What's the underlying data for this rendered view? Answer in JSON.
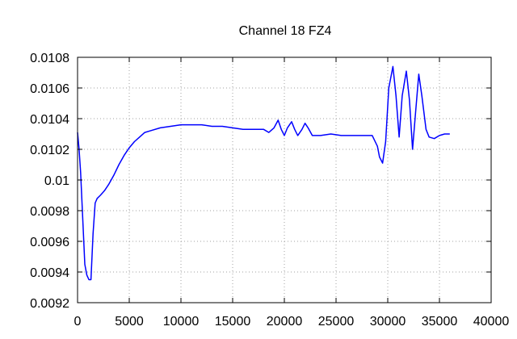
{
  "chart_data": {
    "type": "line",
    "title": "Channel 18 FZ4",
    "xlabel": "",
    "ylabel": "",
    "xlim": [
      0,
      40000
    ],
    "ylim": [
      0.0092,
      0.0108
    ],
    "x_ticks": [
      0,
      5000,
      10000,
      15000,
      20000,
      25000,
      30000,
      35000,
      40000
    ],
    "x_tick_labels": [
      "0",
      "5000",
      "10000",
      "15000",
      "20000",
      "25000",
      "30000",
      "35000",
      "40000"
    ],
    "y_ticks": [
      0.0092,
      0.0094,
      0.0096,
      0.0098,
      0.01,
      0.0102,
      0.0104,
      0.0106,
      0.0108
    ],
    "y_tick_labels": [
      "0.0092",
      "0.0094",
      "0.0096",
      "0.0098",
      "0.01",
      "0.0102",
      "0.0104",
      "0.0106",
      "0.0108"
    ],
    "grid": true,
    "series": [
      {
        "color": "#0000ff",
        "x": [
          0,
          150,
          300,
          500,
          700,
          900,
          1100,
          1300,
          1500,
          1700,
          1900,
          2200,
          2600,
          3000,
          3500,
          4000,
          4500,
          5000,
          5500,
          6000,
          6500,
          7000,
          8000,
          9000,
          10000,
          11000,
          12000,
          13000,
          14000,
          15000,
          16000,
          17000,
          18000,
          18500,
          19000,
          19400,
          19700,
          20000,
          20300,
          20700,
          21000,
          21300,
          21700,
          22000,
          22300,
          22700,
          23500,
          24500,
          25500,
          26500,
          27500,
          28500,
          29000,
          29200,
          29500,
          29800,
          30100,
          30500,
          30800,
          31100,
          31400,
          31800,
          32100,
          32400,
          32700,
          33000,
          33300,
          33700,
          34000,
          34500,
          35000,
          35500,
          36000
        ],
        "y": [
          0.01031,
          0.0102,
          0.01005,
          0.00975,
          0.00945,
          0.00938,
          0.00935,
          0.00935,
          0.00965,
          0.00985,
          0.00988,
          0.0099,
          0.00993,
          0.00997,
          0.01003,
          0.0101,
          0.01016,
          0.01021,
          0.01025,
          0.01028,
          0.01031,
          0.01032,
          0.01034,
          0.01035,
          0.01036,
          0.01036,
          0.01036,
          0.01035,
          0.01035,
          0.01034,
          0.01033,
          0.01033,
          0.01033,
          0.01031,
          0.01034,
          0.01039,
          0.01033,
          0.01029,
          0.01034,
          0.01038,
          0.01033,
          0.01029,
          0.01033,
          0.01037,
          0.01034,
          0.01029,
          0.01029,
          0.0103,
          0.01029,
          0.01029,
          0.01029,
          0.01029,
          0.01022,
          0.01015,
          0.01011,
          0.01025,
          0.0106,
          0.01074,
          0.01055,
          0.01028,
          0.01055,
          0.01071,
          0.01052,
          0.0102,
          0.01045,
          0.01069,
          0.01055,
          0.01033,
          0.01028,
          0.01027,
          0.01029,
          0.0103,
          0.0103
        ]
      }
    ]
  }
}
